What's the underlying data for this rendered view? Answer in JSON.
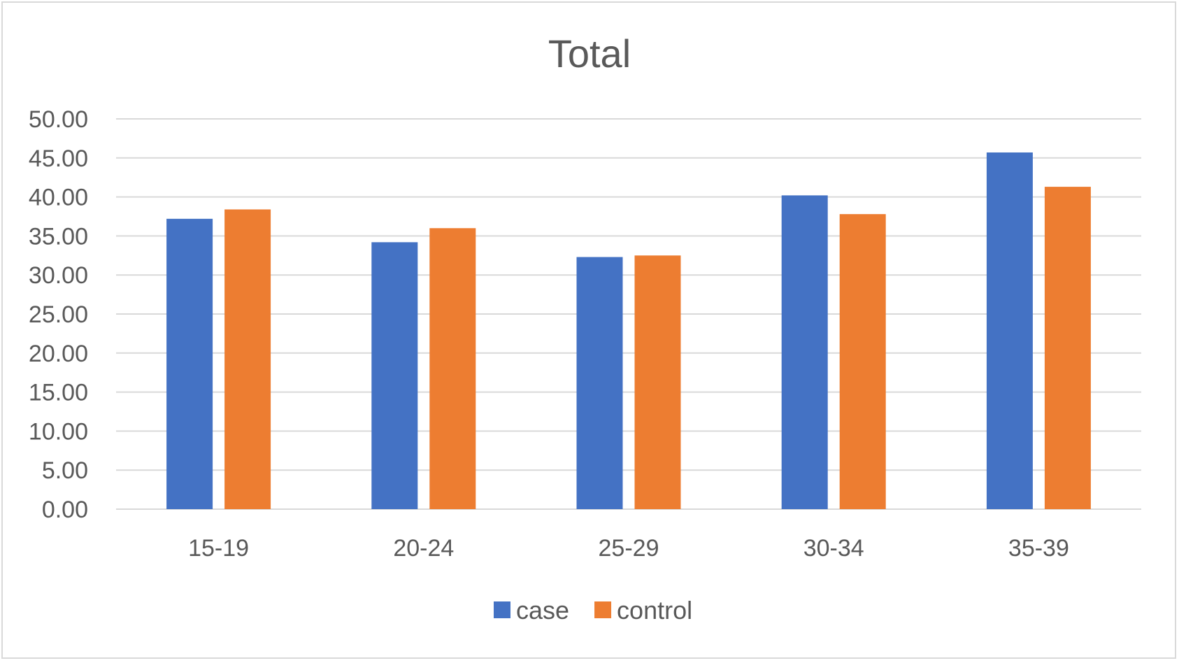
{
  "chart_data": {
    "type": "bar",
    "title": "Total",
    "categories": [
      "15-19",
      "20-24",
      "25-29",
      "30-34",
      "35-39"
    ],
    "series": [
      {
        "name": "case",
        "color": "#4472C4",
        "values": [
          37.2,
          34.2,
          32.3,
          40.2,
          45.7
        ]
      },
      {
        "name": "control",
        "color": "#ED7D31",
        "values": [
          38.4,
          36.0,
          32.5,
          37.8,
          41.3
        ]
      }
    ],
    "ylim": [
      0,
      50
    ],
    "ytick_step": 5,
    "ytick_labels": [
      "0.00",
      "5.00",
      "10.00",
      "15.00",
      "20.00",
      "25.00",
      "30.00",
      "35.00",
      "40.00",
      "45.00",
      "50.00"
    ],
    "xlabel": "",
    "ylabel": "",
    "grid": true,
    "gridline_color": "#d9d9d9",
    "legend_position": "bottom"
  }
}
